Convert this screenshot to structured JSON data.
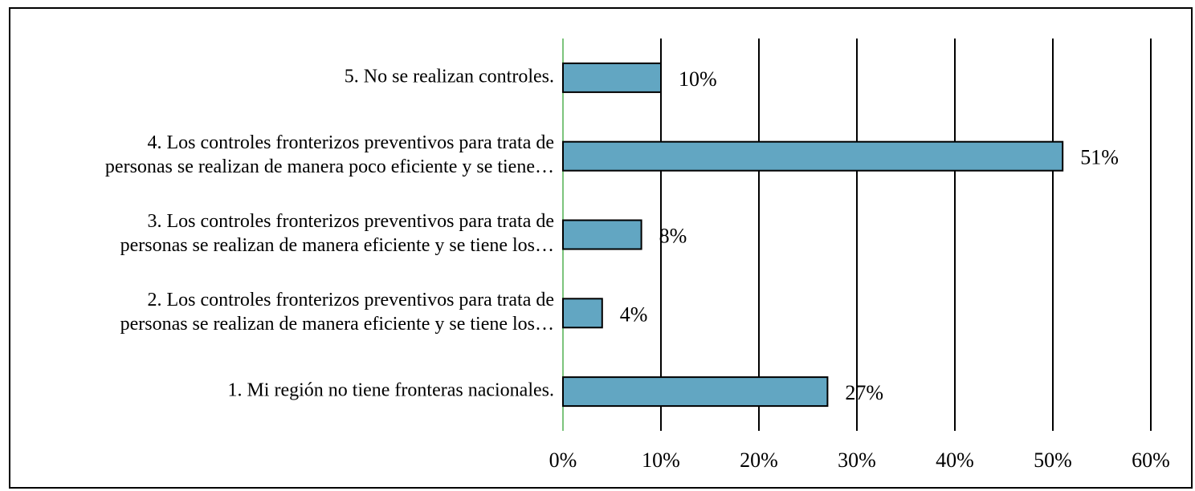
{
  "chart_data": {
    "type": "bar",
    "orientation": "horizontal",
    "categories": [
      [
        "1. Mi región no tiene fronteras nacionales."
      ],
      [
        "2. Los controles fronterizos preventivos para trata de",
        "personas se realizan de manera eficiente y se tiene los…"
      ],
      [
        "3. Los controles fronterizos preventivos para trata de",
        "personas se realizan de manera eficiente y se tiene los…"
      ],
      [
        "4. Los controles fronterizos preventivos para trata de",
        "personas se realizan de manera poco eficiente y se tiene…"
      ],
      [
        "5. No se realizan controles."
      ]
    ],
    "values": [
      27,
      4,
      8,
      51,
      10
    ],
    "value_labels": [
      "27%",
      "4%",
      "8%",
      "51%",
      "10%"
    ],
    "color": "#62a6c2",
    "xlim": [
      0,
      60
    ],
    "xticks": [
      {
        "value": 0,
        "label": "0%"
      },
      {
        "value": 10,
        "label": "10%"
      },
      {
        "value": 20,
        "label": "20%"
      },
      {
        "value": 30,
        "label": "30%"
      },
      {
        "value": 40,
        "label": "40%"
      },
      {
        "value": 50,
        "label": "50%"
      },
      {
        "value": 60,
        "label": "60%"
      }
    ],
    "grid": true
  }
}
